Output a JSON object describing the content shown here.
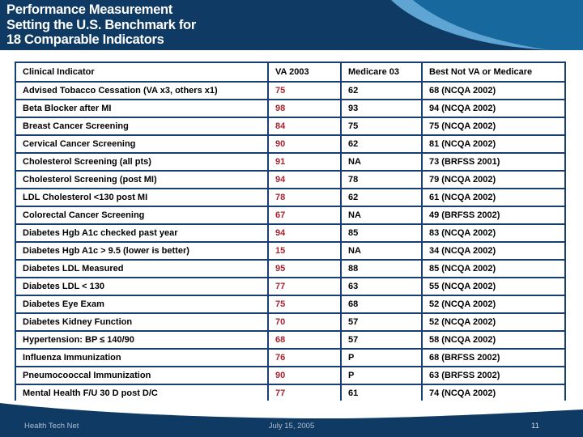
{
  "header": {
    "title_lines": [
      "Performance Measurement",
      "Setting the U.S. Benchmark for",
      "18 Comparable Indicators"
    ]
  },
  "table": {
    "columns": [
      "Clinical Indicator",
      "VA 2003",
      "Medicare 03",
      "Best Not VA or Medicare"
    ],
    "rows": [
      [
        "Advised Tobacco Cessation (VA x3, others x1)",
        "75",
        "62",
        "68 (NCQA 2002)"
      ],
      [
        "Beta Blocker after MI",
        "98",
        "93",
        "94 (NCQA 2002)"
      ],
      [
        "Breast Cancer Screening",
        "84",
        "75",
        "75 (NCQA 2002)"
      ],
      [
        "Cervical Cancer Screening",
        "90",
        "62",
        "81 (NCQA 2002)"
      ],
      [
        "Cholesterol Screening (all pts)",
        "91",
        "NA",
        "73 (BRFSS 2001)"
      ],
      [
        "Cholesterol Screening (post MI)",
        "94",
        "78",
        "79 (NCQA 2002)"
      ],
      [
        "LDL Cholesterol <130 post MI",
        "78",
        "62",
        "61 (NCQA 2002)"
      ],
      [
        "Colorectal Cancer Screening",
        "67",
        "NA",
        "49 (BRFSS 2002)"
      ],
      [
        "Diabetes Hgb A1c checked past year",
        "94",
        "85",
        "83 (NCQA 2002)"
      ],
      [
        "Diabetes Hgb A1c > 9.5 (lower is better)",
        "15",
        "NA",
        "34 (NCQA 2002)"
      ],
      [
        "Diabetes LDL Measured",
        "95",
        "88",
        "85 (NCQA 2002)"
      ],
      [
        "Diabetes LDL < 130",
        "77",
        "63",
        "55 (NCQA 2002)"
      ],
      [
        "Diabetes Eye Exam",
        "75",
        "68",
        "52 (NCQA 2002)"
      ],
      [
        "Diabetes Kidney Function",
        "70",
        "57",
        "52 (NCQA 2002)"
      ],
      [
        "Hypertension: BP ≤ 140/90",
        "68",
        "57",
        "58 (NCQA 2002)"
      ],
      [
        "Influenza Immunization",
        "76",
        "P",
        "68 (BRFSS 2002)"
      ],
      [
        "Pneumocooccal Immunization",
        "90",
        "P",
        "63 (BRFSS 2002)"
      ],
      [
        "Mental Health F/U 30 D post D/C",
        "77",
        "61",
        "74 (NCQA 2002)"
      ]
    ]
  },
  "footer": {
    "left": "Health Tech Net",
    "center": "July 15, 2005",
    "page": "11"
  },
  "colors": {
    "banner_navy": "#0f3a63",
    "table_border_navy": "#17406f",
    "va_value_red": "#a8232f",
    "swoosh_medium_blue": "#17689c",
    "swoosh_light_blue": "#5fa5d4",
    "footer_text_gray": "#b3bfce"
  }
}
